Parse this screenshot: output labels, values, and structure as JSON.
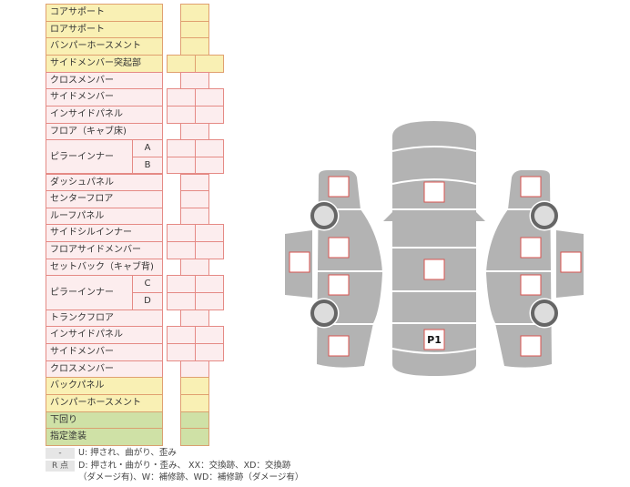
{
  "colors": {
    "yellow": "#f9f0b4",
    "pink": "#fcedee",
    "green": "#cfe1a6",
    "panel_gray": "#b3b3b3",
    "box_border": "#d9534f"
  },
  "rows": [
    {
      "label": "コアサポート",
      "color": "yellow",
      "cols": 1
    },
    {
      "label": "ロアサポート",
      "color": "yellow",
      "cols": 1
    },
    {
      "label": "バンパーホースメント",
      "color": "yellow",
      "cols": 1
    },
    {
      "label": "サイドメンバー突起部",
      "color": "yellow",
      "cols": 2
    },
    {
      "label": "クロスメンバー",
      "color": "pink",
      "cols": 1
    },
    {
      "label": "サイドメンバー",
      "color": "pink",
      "cols": 2
    },
    {
      "label": "インサイドパネル",
      "color": "pink",
      "cols": 2
    },
    {
      "label": "フロア（キャブ床)",
      "color": "pink",
      "cols": 1
    },
    {
      "label": "ピラーインナー",
      "color": "pink",
      "cols": 2,
      "sub": [
        "A",
        "B"
      ]
    },
    {
      "label": "ダッシュパネル",
      "color": "pink",
      "cols": 1
    },
    {
      "label": "センターフロア",
      "color": "pink",
      "cols": 1
    },
    {
      "label": "ルーフパネル",
      "color": "pink",
      "cols": 1
    },
    {
      "label": "サイドシルインナー",
      "color": "pink",
      "cols": 2
    },
    {
      "label": "フロアサイドメンバー",
      "color": "pink",
      "cols": 2
    },
    {
      "label": "セットバック（キャブ背)",
      "color": "pink",
      "cols": 1
    },
    {
      "label": "ピラーインナー",
      "color": "pink",
      "cols": 2,
      "sub": [
        "C",
        "D"
      ]
    },
    {
      "label": "トランクフロア",
      "color": "pink",
      "cols": 1
    },
    {
      "label": "インサイドパネル",
      "color": "pink",
      "cols": 2
    },
    {
      "label": "サイドメンバー",
      "color": "pink",
      "cols": 2
    },
    {
      "label": "クロスメンバー",
      "color": "pink",
      "cols": 1
    },
    {
      "label": "バックパネル",
      "color": "yellow",
      "cols": 1
    },
    {
      "label": "バンパーホースメント",
      "color": "yellow",
      "cols": 1
    },
    {
      "label": "下回り",
      "color": "green",
      "cols": 1
    },
    {
      "label": "指定塗装",
      "color": "green",
      "cols": 1
    }
  ],
  "legend": [
    {
      "key": "-",
      "text": "U: 押され、曲がり、歪み"
    },
    {
      "key": "R 点",
      "text": "D: 押され・曲がり・歪み、 XX：交換跡、XD：交換跡"
    },
    {
      "key": "",
      "text": "（ダメージ有)、W：補修跡、WD：補修跡（ダメージ有）"
    }
  ],
  "diagram": {
    "marked_box_label": "P1"
  }
}
